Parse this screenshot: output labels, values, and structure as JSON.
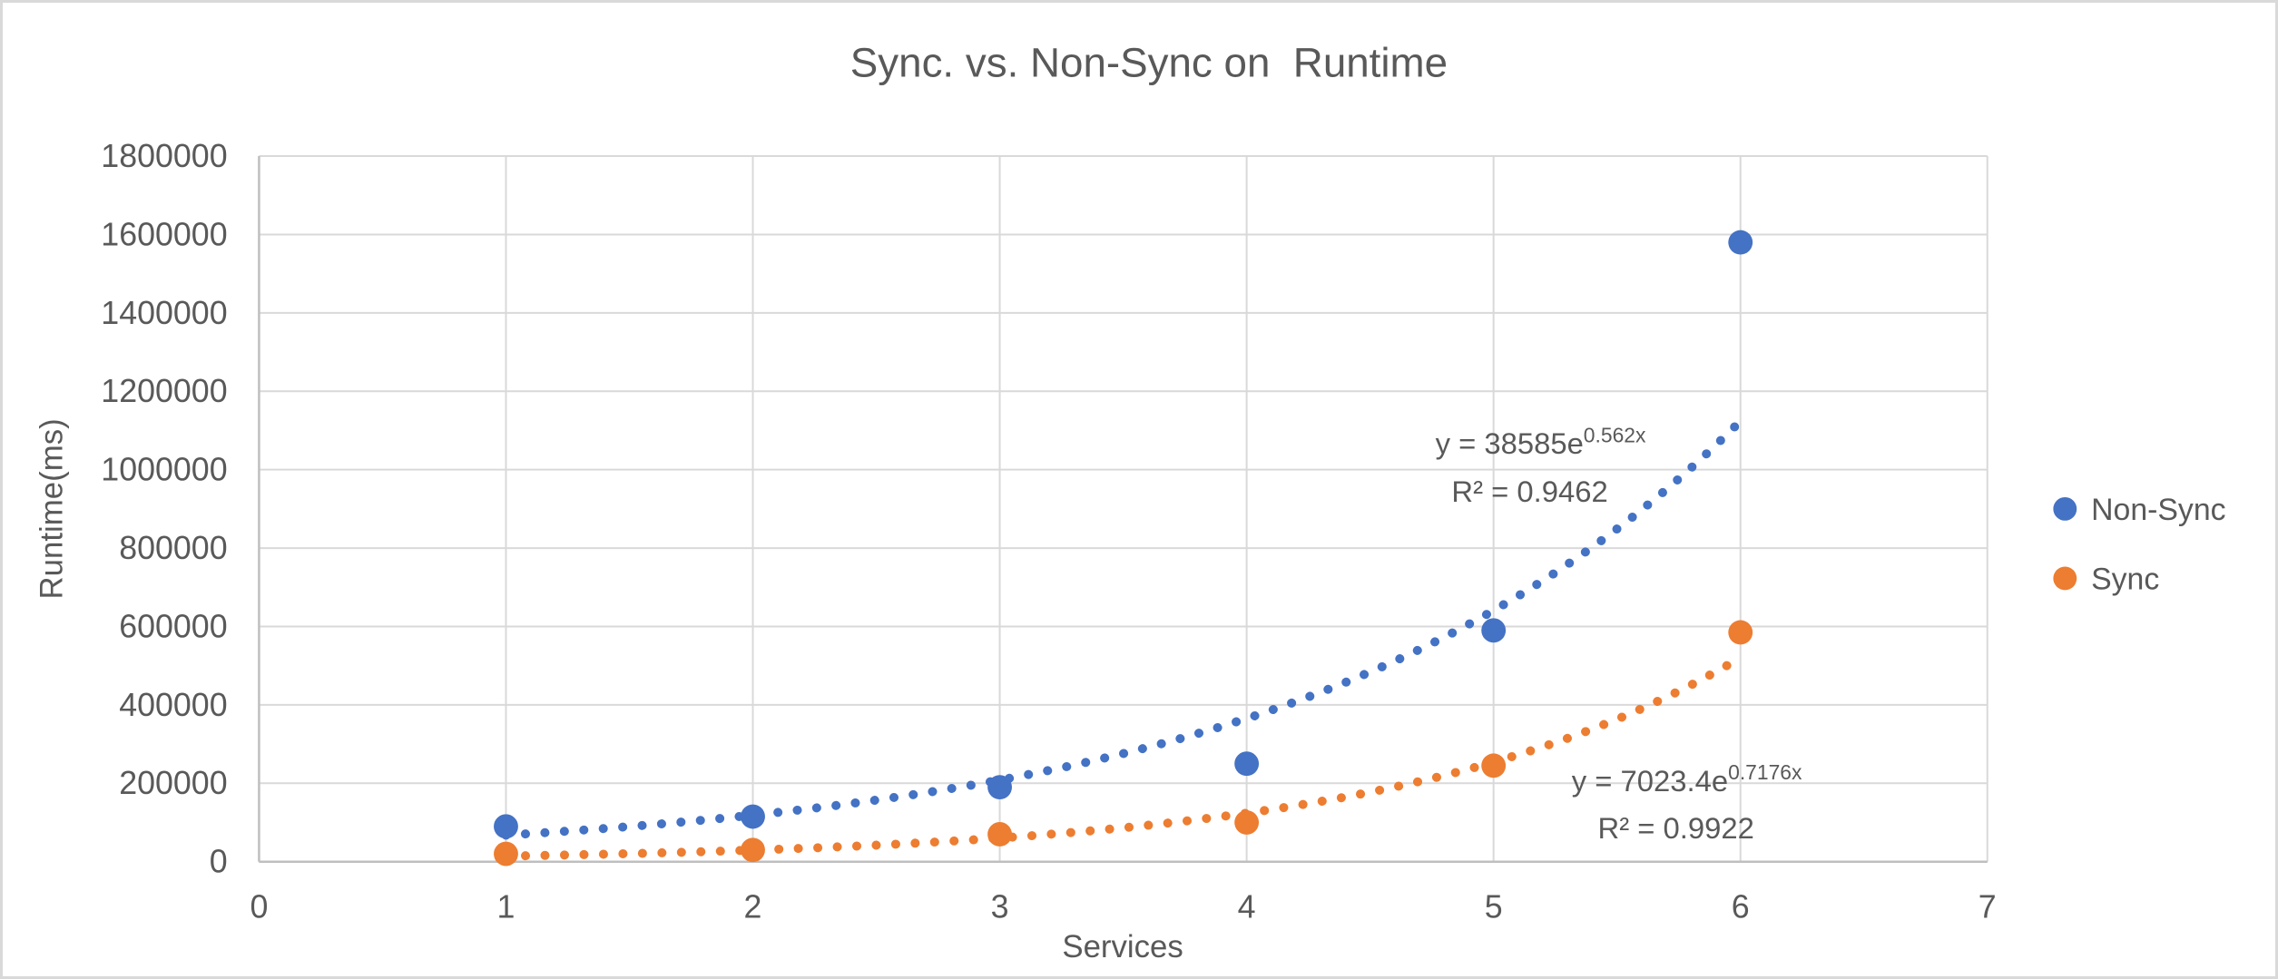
{
  "chart": {
    "background": "#ffffff",
    "frame_border_color": "#d9d9d9"
  },
  "chart_data": {
    "type": "scatter",
    "title": "Sync. vs. Non-Sync on  Runtime",
    "xlabel": "Services",
    "ylabel": "Runtime(ms)",
    "xlim": [
      0,
      7
    ],
    "ylim": [
      0,
      1800000
    ],
    "x_tick_labels": [
      "0",
      "1",
      "2",
      "3",
      "4",
      "5",
      "6",
      "7"
    ],
    "y_tick_labels": [
      "0",
      "200000",
      "400000",
      "600000",
      "800000",
      "1000000",
      "1200000",
      "1400000",
      "1600000",
      "1800000"
    ],
    "grid": true,
    "gridline_color": "#d9d9d9",
    "axis_line_color": "#bfbfbf",
    "text_color": "#595959",
    "legend_position": "right-middle",
    "x": [
      1,
      2,
      3,
      4,
      5,
      6
    ],
    "series": [
      {
        "name": "Non-Sync",
        "color": "#4472C4",
        "values": [
          90000,
          115000,
          190000,
          250000,
          590000,
          1580000
        ],
        "trendline": {
          "type": "exponential",
          "style": "dotted",
          "a": 38585,
          "b": 0.562,
          "range": [
            1,
            6
          ],
          "label_base": "y = 38585e",
          "label_exponent": "0.562x",
          "r2": "R² = 0.9462"
        }
      },
      {
        "name": "Sync",
        "color": "#ED7D31",
        "values": [
          20000,
          30000,
          70000,
          100000,
          245000,
          585000
        ],
        "trendline": {
          "type": "exponential",
          "style": "dotted",
          "a": 7023.4,
          "b": 0.7176,
          "range": [
            1,
            6
          ],
          "label_base": "y = 7023.4e",
          "label_exponent": "0.7176x",
          "r2": "R² = 0.9922"
        }
      }
    ]
  }
}
